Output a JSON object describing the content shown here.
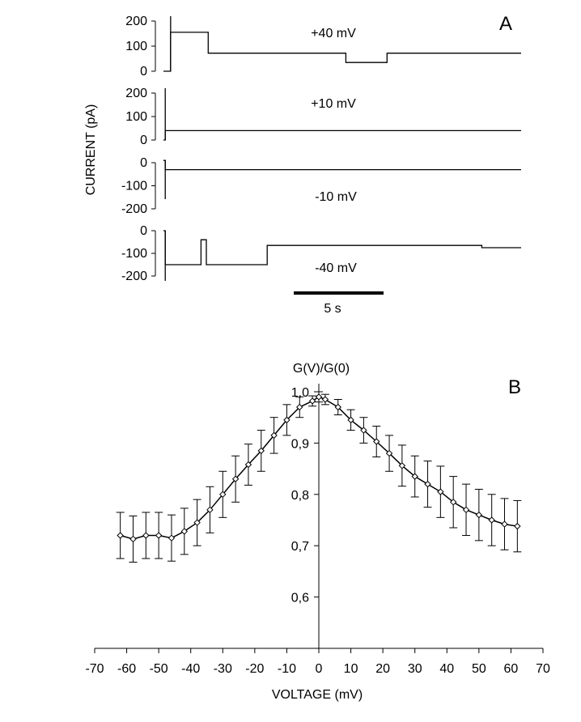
{
  "figure": {
    "panel_a_label": "A",
    "panel_b_label": "B"
  },
  "chart_data": [
    {
      "type": "line",
      "title": "",
      "panel": "A",
      "ylabel": "CURRENT (pA)",
      "scale_bar_label": "5 s",
      "scale_bar_seconds": 5,
      "time_range_s": [
        0,
        20
      ],
      "traces": [
        {
          "name": "+40 mV",
          "ylim": [
            0,
            200
          ],
          "yticks": [
            0,
            100,
            200
          ],
          "segments": [
            [
              0,
              0.4,
              0
            ],
            [
              0.4,
              2.5,
              155
            ],
            [
              2.5,
              10.2,
              72
            ],
            [
              10.2,
              12.5,
              35
            ],
            [
              12.5,
              20,
              72
            ]
          ]
        },
        {
          "name": "+10 mV",
          "ylim": [
            0,
            200
          ],
          "yticks": [
            0,
            100,
            200
          ],
          "segments": [
            [
              0,
              0.1,
              0
            ],
            [
              0.1,
              20,
              40
            ]
          ]
        },
        {
          "name": "-10 mV",
          "ylim": [
            -200,
            0
          ],
          "yticks": [
            -200,
            -100,
            0
          ],
          "segments": [
            [
              0,
              0.1,
              10
            ],
            [
              0.1,
              20,
              -30
            ]
          ]
        },
        {
          "name": "-40 mV",
          "ylim": [
            -200,
            0
          ],
          "yticks": [
            -200,
            -100,
            0
          ],
          "segments": [
            [
              0,
              0.1,
              0
            ],
            [
              0.1,
              2.1,
              -150
            ],
            [
              2.1,
              2.4,
              -40
            ],
            [
              2.4,
              5.8,
              -150
            ],
            [
              5.8,
              17.8,
              -65
            ],
            [
              17.8,
              20,
              -75
            ]
          ]
        }
      ]
    },
    {
      "type": "scatter",
      "title": "",
      "panel": "B",
      "xlabel": "VOLTAGE (mV)",
      "ylabel": "G(V)/G(0)",
      "xlim": [
        -70,
        70
      ],
      "ylim": [
        0.5,
        1.0
      ],
      "xticks": [
        -70,
        -60,
        -50,
        -40,
        -30,
        -20,
        -10,
        0,
        10,
        20,
        30,
        40,
        50,
        60,
        70
      ],
      "yticks": [
        0.6,
        0.7,
        0.8,
        0.9,
        1.0
      ],
      "ytick_labels": [
        "0,6",
        "0,7",
        "0,8",
        "0,9",
        "1,0"
      ],
      "grid": false,
      "series": [
        {
          "name": "G(V)/G(0)",
          "x": [
            -62,
            -58,
            -54,
            -50,
            -46,
            -42,
            -38,
            -34,
            -30,
            -26,
            -22,
            -18,
            -14,
            -10,
            -6,
            -2,
            0,
            2,
            6,
            10,
            14,
            18,
            22,
            26,
            30,
            34,
            38,
            42,
            46,
            50,
            54,
            58,
            62
          ],
          "y": [
            0.72,
            0.713,
            0.72,
            0.72,
            0.715,
            0.728,
            0.745,
            0.77,
            0.8,
            0.83,
            0.858,
            0.885,
            0.915,
            0.945,
            0.97,
            0.982,
            0.99,
            0.985,
            0.97,
            0.945,
            0.925,
            0.903,
            0.88,
            0.856,
            0.835,
            0.82,
            0.805,
            0.785,
            0.77,
            0.76,
            0.75,
            0.742,
            0.738
          ],
          "error": [
            0.045,
            0.045,
            0.045,
            0.045,
            0.045,
            0.045,
            0.045,
            0.045,
            0.045,
            0.045,
            0.04,
            0.04,
            0.035,
            0.03,
            0.02,
            0.01,
            0.01,
            0.01,
            0.015,
            0.02,
            0.025,
            0.03,
            0.035,
            0.04,
            0.04,
            0.045,
            0.05,
            0.05,
            0.05,
            0.05,
            0.05,
            0.05,
            0.05
          ]
        }
      ]
    }
  ]
}
